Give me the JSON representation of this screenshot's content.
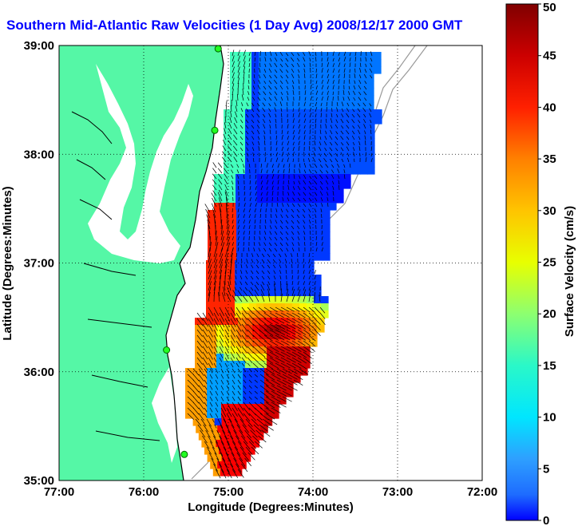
{
  "title": "Southern Mid-Atlantic Raw Velocities (1 Day Avg) 2008/12/17 2000 GMT",
  "map": {
    "xlabel": "Longitude (Degrees:Minutes)",
    "ylabel": "Latitude (Degrees:Minutes)",
    "x_ticks": [
      "77:00",
      "76:00",
      "75:00",
      "74:00",
      "73:00",
      "72:00"
    ],
    "y_ticks": [
      "39:00",
      "38:00",
      "37:00",
      "36:00",
      "35:00"
    ],
    "lon_range": [
      -77,
      -72
    ],
    "lat_range": [
      35,
      39
    ],
    "grid": "dotted",
    "land_color": "#55f7a6",
    "water_color": "#ffffff"
  },
  "colorbar": {
    "label": "Surface Velocity (cm/s)",
    "min": 0,
    "max": 50,
    "ticks": [
      "0",
      "5",
      "10",
      "15",
      "20",
      "25",
      "30",
      "35",
      "40",
      "45",
      "50"
    ],
    "colormap": "jet"
  },
  "sites": [
    {
      "lon": -75.12,
      "lat": 38.97
    },
    {
      "lon": -75.16,
      "lat": 38.22
    },
    {
      "lon": -75.73,
      "lat": 36.2
    },
    {
      "lon": -75.52,
      "lat": 35.24
    }
  ]
}
